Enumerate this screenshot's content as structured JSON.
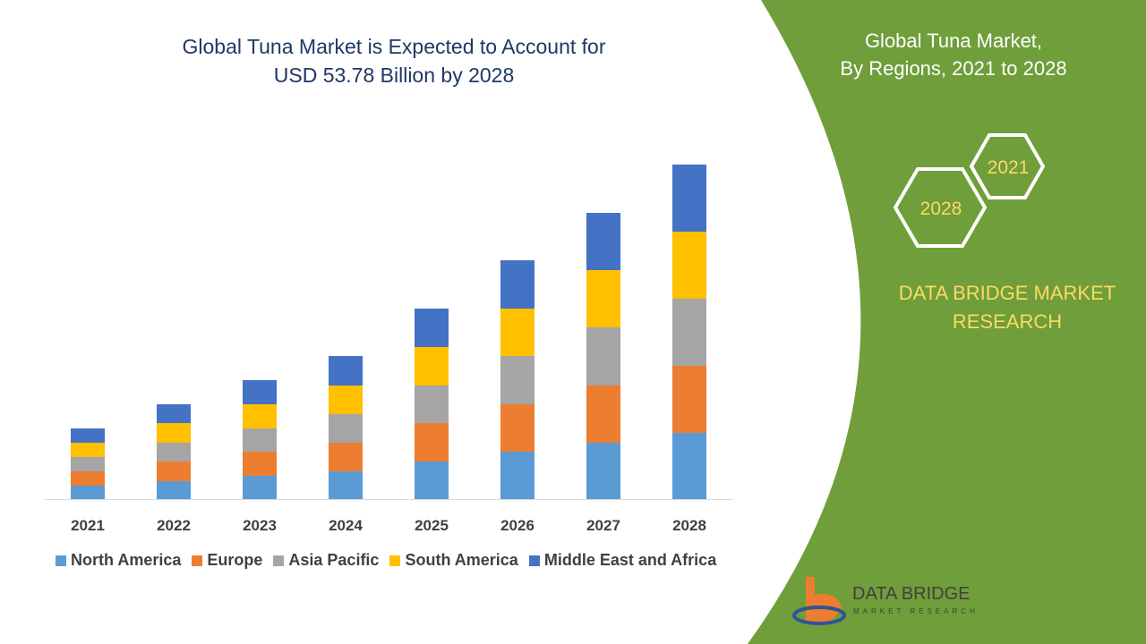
{
  "chart_data": {
    "type": "stacked-bar",
    "title": [
      "Global Tuna Market is Expected to Account for",
      "USD 53.78 Billion by 2028"
    ],
    "categories": [
      "2021",
      "2022",
      "2023",
      "2024",
      "2025",
      "2026",
      "2027",
      "2028"
    ],
    "series": [
      {
        "name": "North America",
        "color": "#5b9bd5",
        "values": [
          15,
          20,
          26,
          31,
          42,
          53,
          63,
          74
        ]
      },
      {
        "name": "Europe",
        "color": "#ed7d31",
        "values": [
          16,
          22,
          27,
          32,
          43,
          53,
          64,
          75
        ]
      },
      {
        "name": "Asia Pacific",
        "color": "#a5a5a5",
        "values": [
          16,
          21,
          26,
          32,
          42,
          54,
          65,
          75
        ]
      },
      {
        "name": "South America",
        "color": "#ffc000",
        "values": [
          16,
          22,
          27,
          32,
          43,
          53,
          64,
          75
        ]
      },
      {
        "name": "Middle East and Africa",
        "color": "#4472c4",
        "values": [
          16,
          21,
          27,
          33,
          43,
          54,
          64,
          75
        ]
      }
    ]
  },
  "side_panel": {
    "title": [
      "Global Tuna Market,",
      "By Regions, 2021 to 2028"
    ],
    "hexagons": [
      "2021",
      "2028"
    ],
    "brand": [
      "DATA BRIDGE MARKET",
      "RESEARCH"
    ]
  },
  "logo": {
    "name": "DATA BRIDGE",
    "tagline": "MARKET RESEARCH"
  }
}
